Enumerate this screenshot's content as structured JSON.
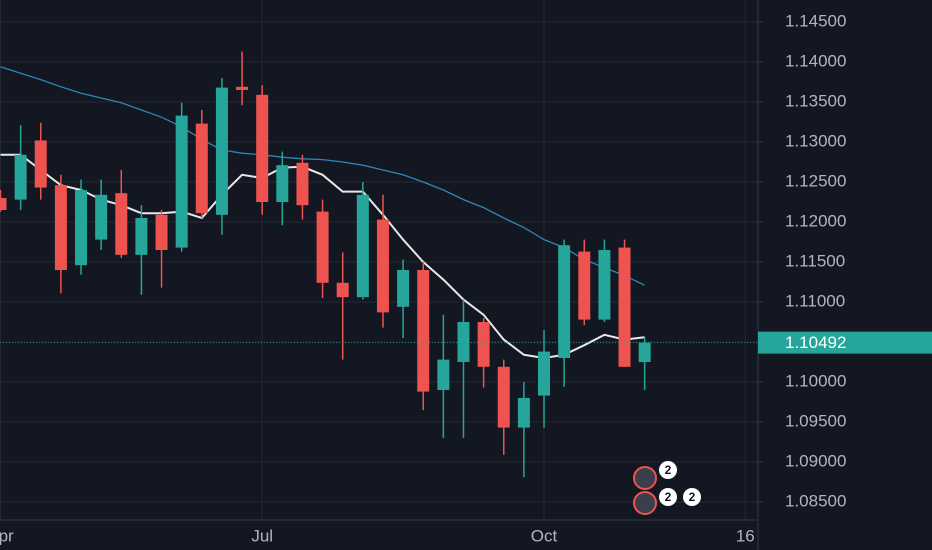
{
  "chart_data": {
    "type": "candlestick",
    "categories": [
      "Apr",
      null,
      null,
      null,
      null,
      null,
      null,
      null,
      null,
      null,
      null,
      null,
      null,
      "Jul",
      null,
      null,
      null,
      null,
      null,
      null,
      null,
      null,
      null,
      null,
      null,
      null,
      null,
      "Oct",
      null,
      null,
      null,
      null,
      null,
      null,
      null,
      null,
      null,
      "16"
    ],
    "open": [
      1.123,
      1.1228,
      1.1302,
      1.1246,
      1.1146,
      1.1178,
      1.1236,
      1.1159,
      1.1209,
      1.1168,
      1.1323,
      1.1209,
      1.1369,
      1.1359,
      1.1225,
      1.1274,
      1.1213,
      1.1124,
      1.1106,
      1.1203,
      1.1094,
      1.114,
      1.099,
      1.1025,
      1.1075,
      1.1019,
      1.0943,
      1.0983,
      1.103,
      1.1163,
      1.1078,
      1.1168,
      1.1025,
      null,
      null,
      null,
      null,
      null
    ],
    "high": [
      1.124,
      1.1321,
      1.1324,
      1.1259,
      1.1253,
      1.1253,
      1.1265,
      1.1221,
      1.1215,
      1.1349,
      1.134,
      1.138,
      1.1413,
      1.1371,
      1.1288,
      1.1284,
      1.1228,
      1.1162,
      1.125,
      1.1234,
      1.1153,
      1.115,
      1.1084,
      1.1103,
      1.108,
      1.1028,
      1.1,
      1.1065,
      1.1178,
      1.1178,
      1.1178,
      1.1178,
      1.1056,
      null,
      null,
      null,
      null,
      null
    ],
    "low": [
      1.1213,
      1.1215,
      1.1228,
      1.1111,
      1.1134,
      1.1165,
      1.1155,
      1.1109,
      1.1118,
      1.1163,
      1.1205,
      1.1184,
      1.1346,
      1.1209,
      1.1196,
      1.1203,
      1.1105,
      1.1028,
      1.1103,
      1.1068,
      1.1055,
      1.0965,
      1.093,
      1.093,
      1.0993,
      1.0909,
      1.0881,
      1.0943,
      1.0994,
      1.1071,
      1.1075,
      1.1019,
      1.099,
      null,
      null,
      null,
      null,
      null
    ],
    "close": [
      1.1215,
      1.1284,
      1.1243,
      1.114,
      1.124,
      1.1234,
      1.1159,
      1.1205,
      1.1165,
      1.1333,
      1.1211,
      1.1368,
      1.1365,
      1.1225,
      1.1271,
      1.1221,
      1.1124,
      1.1106,
      1.1234,
      1.1087,
      1.114,
      1.0988,
      1.1028,
      1.1075,
      1.1019,
      1.0943,
      1.098,
      1.1038,
      1.1171,
      1.1078,
      1.1165,
      1.1019,
      1.10492,
      null,
      null,
      null,
      null,
      null
    ],
    "up_color": "#26a69a",
    "down_color": "#ef5350",
    "overlays": [
      {
        "color": "#e8e8e8",
        "values": [
          1.1284,
          1.1284,
          1.1265,
          1.1246,
          1.124,
          1.1228,
          1.1221,
          1.1211,
          1.1211,
          1.1213,
          1.1205,
          1.1234,
          1.1259,
          1.1255,
          1.1268,
          1.1269,
          1.1259,
          1.1238,
          1.1238,
          1.1209,
          1.1178,
          1.115,
          1.1128,
          1.1103,
          1.1084,
          1.1053,
          1.1034,
          1.103,
          1.1034,
          1.1046,
          1.1059,
          1.1053,
          1.1056,
          null,
          null,
          null,
          null,
          null
        ]
      },
      {
        "color": "#2f86b5",
        "values": [
          1.1394,
          1.1386,
          1.1378,
          1.1369,
          1.1361,
          1.1355,
          1.1349,
          1.134,
          1.1331,
          1.1319,
          1.1303,
          1.129,
          1.1286,
          1.1284,
          1.1281,
          1.1279,
          1.1278,
          1.1275,
          1.1271,
          1.1265,
          1.1259,
          1.125,
          1.124,
          1.1228,
          1.1218,
          1.1205,
          1.1193,
          1.1178,
          1.1168,
          1.1153,
          1.1143,
          1.1133,
          1.1121,
          null,
          null,
          null,
          null,
          null
        ]
      }
    ],
    "ylim": [
      1.08275,
      1.14775
    ],
    "yticks": [
      {
        "value": 1.145,
        "label": "1.14500"
      },
      {
        "value": 1.14,
        "label": "1.14000"
      },
      {
        "value": 1.135,
        "label": "1.13500"
      },
      {
        "value": 1.13,
        "label": "1.13000"
      },
      {
        "value": 1.125,
        "label": "1.12500"
      },
      {
        "value": 1.12,
        "label": "1.12000"
      },
      {
        "value": 1.115,
        "label": "1.11500"
      },
      {
        "value": 1.11,
        "label": "1.11000"
      },
      {
        "value": 1.105,
        "label": "1.10500"
      },
      {
        "value": 1.1,
        "label": "1.10000"
      },
      {
        "value": 1.095,
        "label": "1.09500"
      },
      {
        "value": 1.09,
        "label": "1.09000"
      },
      {
        "value": 1.085,
        "label": "1.08500"
      }
    ],
    "grid": true,
    "price_line_color": "#26a69a",
    "events": [
      "2",
      "2",
      "2"
    ]
  }
}
